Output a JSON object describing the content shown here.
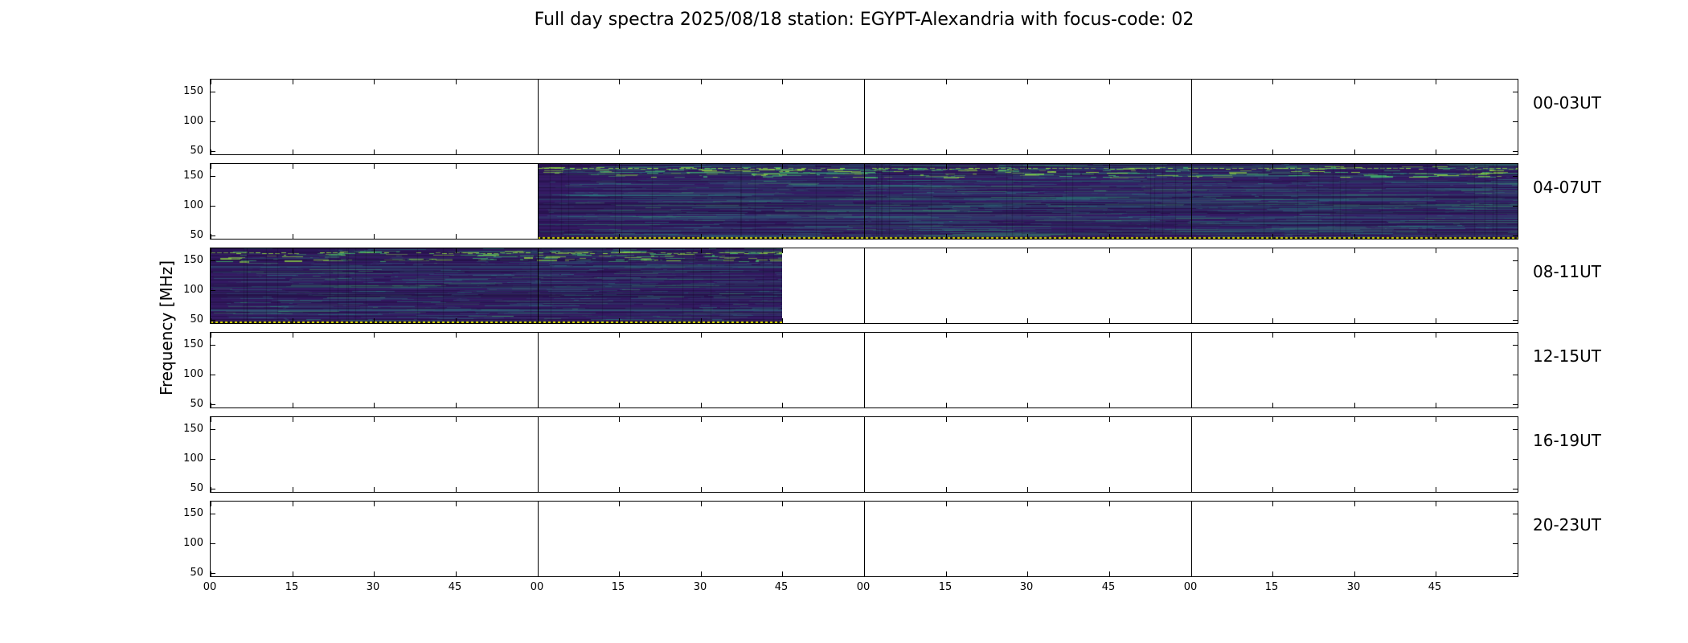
{
  "figure": {
    "background": "#ffffff"
  },
  "chart_data": {
    "type": "heatmap",
    "title": "Full day spectra 2025/08/18 station: EGYPT-Alexandria with focus-code: 02",
    "xlabel": "",
    "ylabel": "Frequency [MHz]",
    "y_ticks_mhz": [
      150,
      100,
      50
    ],
    "y_range_mhz": [
      45,
      170
    ],
    "hours_per_row": 4,
    "minute_tick_labels": [
      "00",
      "15",
      "30",
      "45"
    ],
    "legend_position": "none",
    "grid": false,
    "rows": [
      {
        "label": "00-03UT",
        "segments": []
      },
      {
        "label": "04-07UT",
        "segments": [
          {
            "start_hour": 1.0,
            "end_hour": 4.0,
            "start_ut": "05:00",
            "end_ut": "08:00"
          }
        ]
      },
      {
        "label": "08-11UT",
        "segments": [
          {
            "start_hour": 0.0,
            "end_hour": 1.75,
            "start_ut": "08:00",
            "end_ut": "09:45"
          }
        ]
      },
      {
        "label": "12-15UT",
        "segments": []
      },
      {
        "label": "16-19UT",
        "segments": []
      },
      {
        "label": "20-23UT",
        "segments": []
      }
    ],
    "colors": {
      "panel_border": "#000000",
      "spectrogram_base": "#341a63",
      "spectrogram_shadow": "#1d0b38",
      "streak_teal": "#2a8f8a",
      "streak_green": "#3fb06e",
      "bright_band": "#8fd744",
      "dotted_line_yellow": "#d8d800",
      "dotted_line_dark": "#101010"
    }
  }
}
